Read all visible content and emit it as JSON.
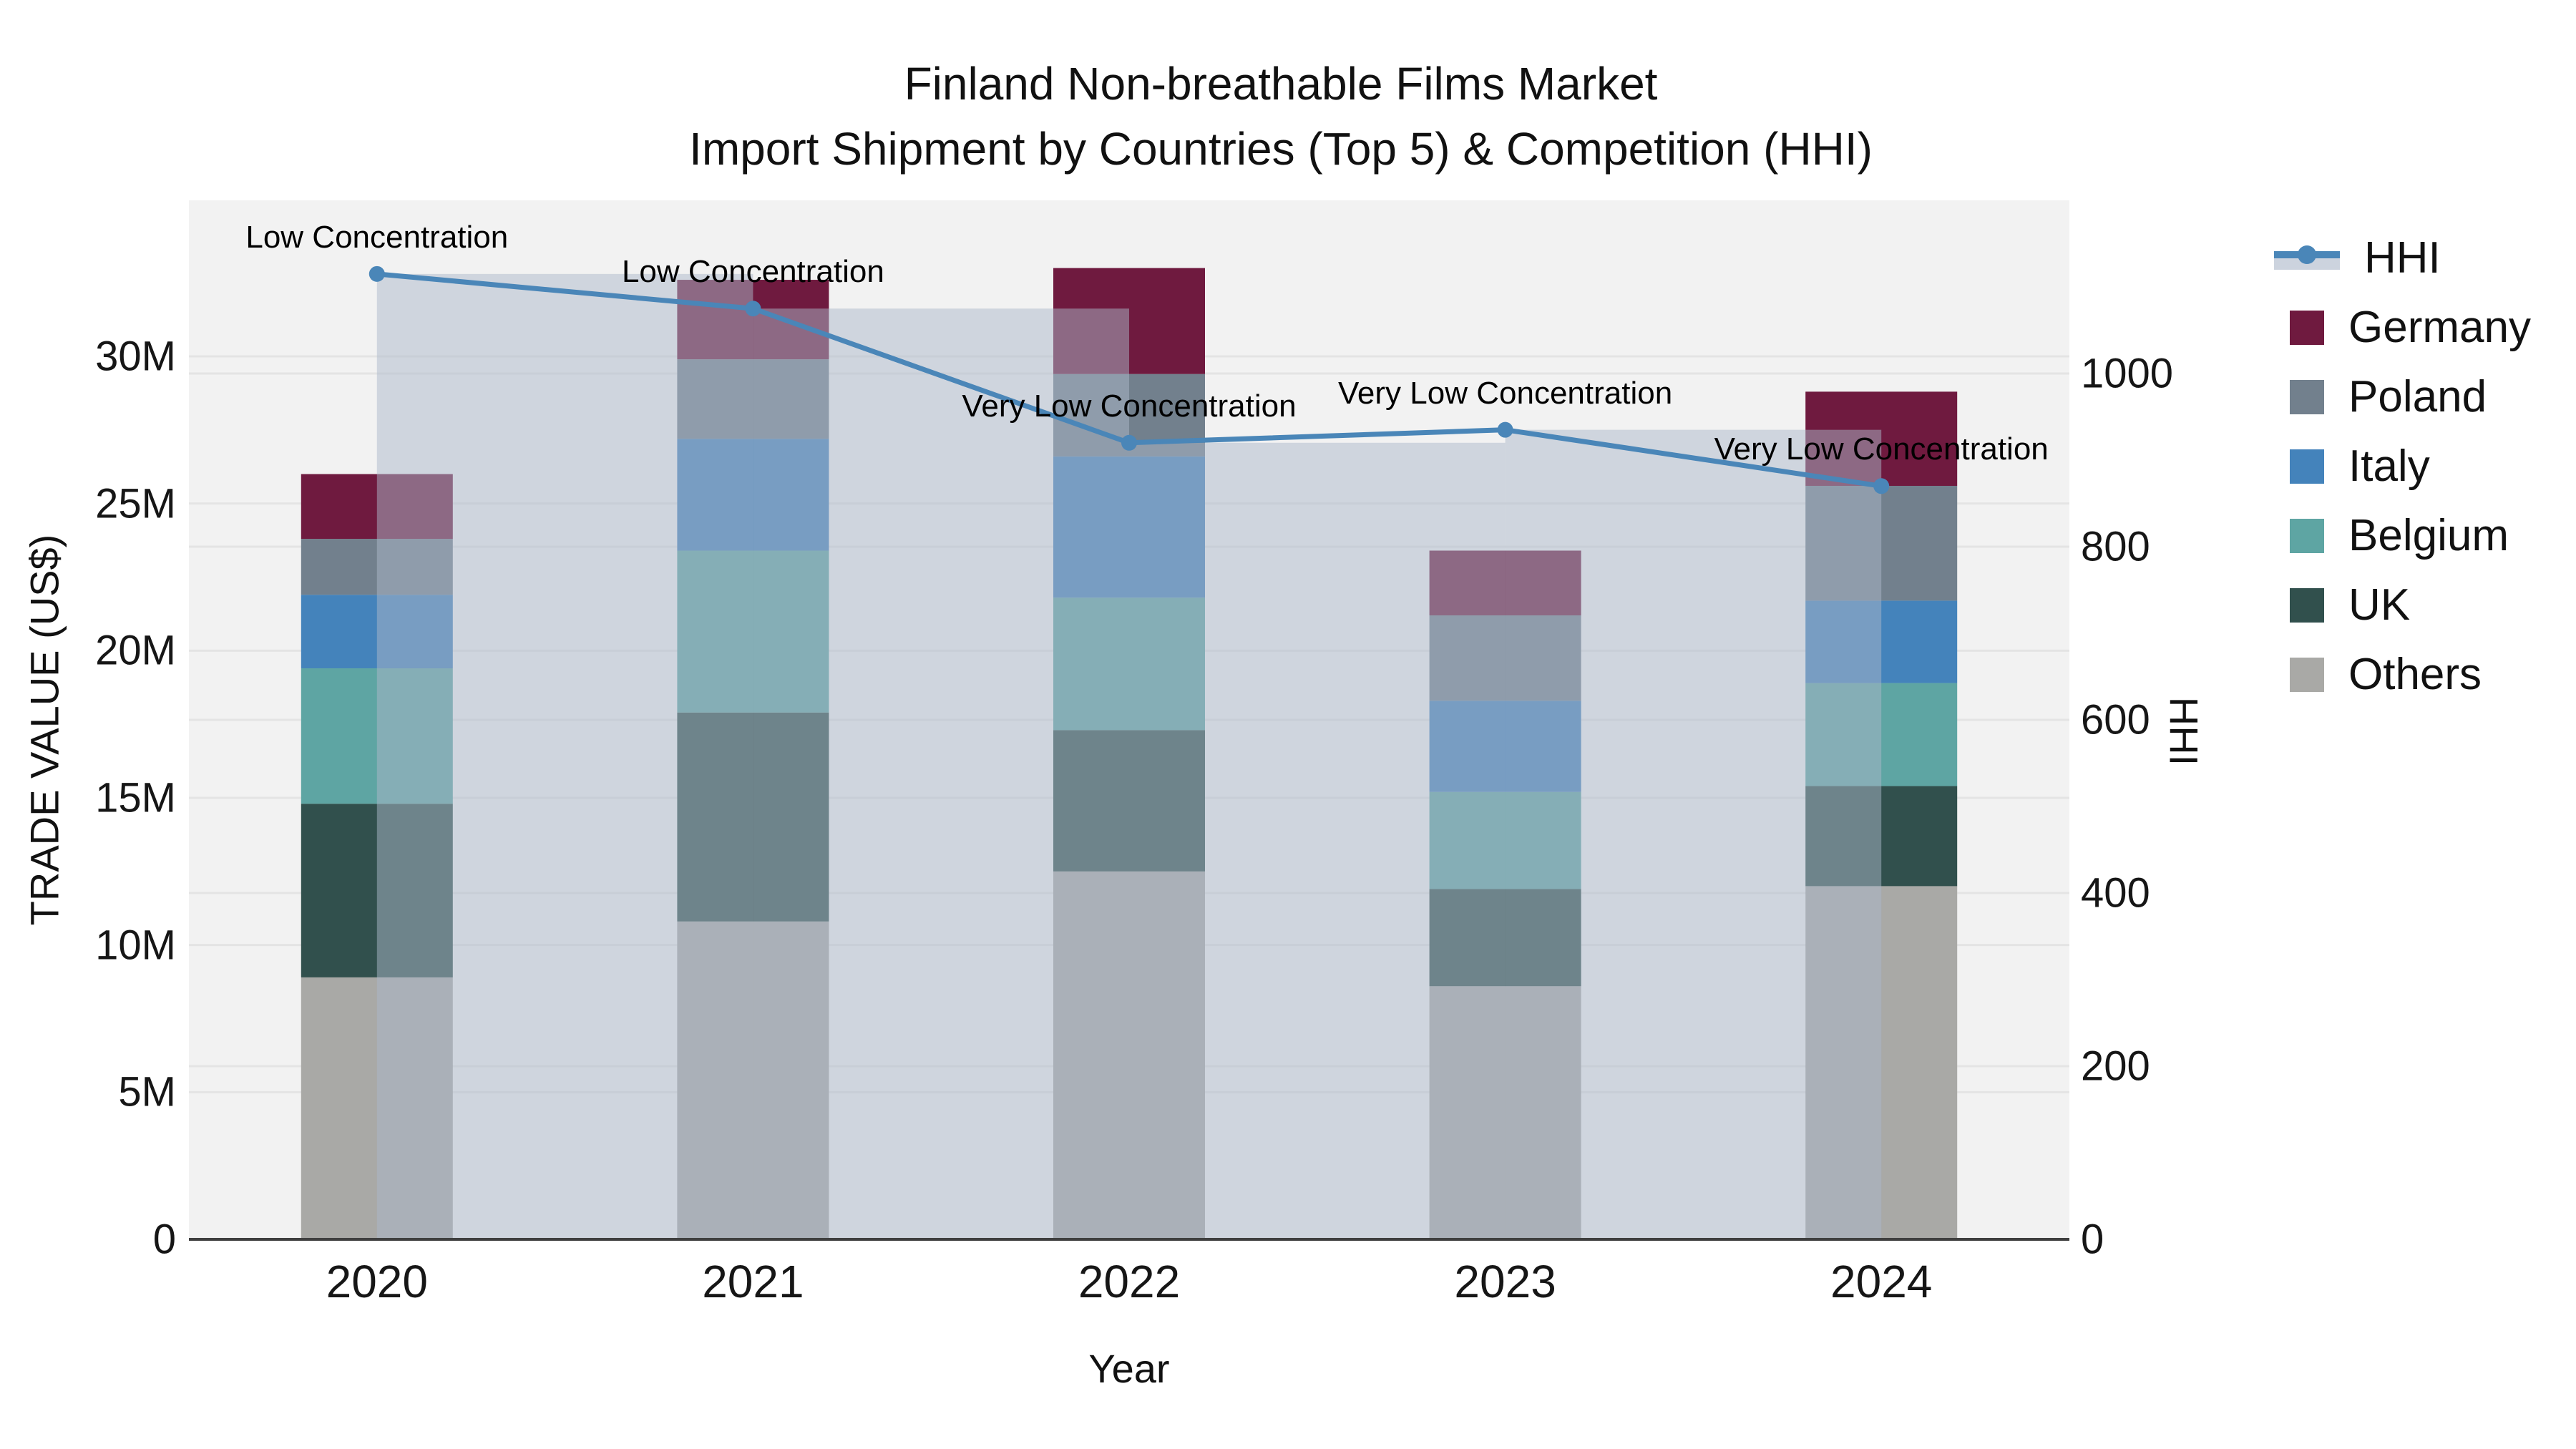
{
  "title": {
    "line1": "Finland Non-breathable Films Market",
    "line2": "Import Shipment by Countries (Top 5) & Competition (HHI)"
  },
  "axes": {
    "x": {
      "title": "Year",
      "labels": [
        "2020",
        "2021",
        "2022",
        "2023",
        "2024"
      ]
    },
    "y_left": {
      "title": "TRADE VALUE (US$)",
      "ticks": [
        {
          "label": "0",
          "value": 0
        },
        {
          "label": "5M",
          "value": 5
        },
        {
          "label": "10M",
          "value": 10
        },
        {
          "label": "15M",
          "value": 15
        },
        {
          "label": "20M",
          "value": 20
        },
        {
          "label": "25M",
          "value": 25
        },
        {
          "label": "30M",
          "value": 30
        }
      ],
      "max": 35.3
    },
    "y_right": {
      "title": "HHI",
      "ticks": [
        {
          "label": "0",
          "value": 0
        },
        {
          "label": "200",
          "value": 200
        },
        {
          "label": "400",
          "value": 400
        },
        {
          "label": "600",
          "value": 600
        },
        {
          "label": "800",
          "value": 800
        },
        {
          "label": "1000",
          "value": 1000
        }
      ],
      "max": 1200
    }
  },
  "legend": {
    "items": [
      {
        "label": "HHI",
        "type": "line",
        "color": "#4a86b8",
        "band": "#ccd3de"
      },
      {
        "label": "Germany",
        "type": "square",
        "color": "#6f1a3f"
      },
      {
        "label": "Poland",
        "type": "square",
        "color": "#72808d"
      },
      {
        "label": "Italy",
        "type": "square",
        "color": "#4483bb"
      },
      {
        "label": "Belgium",
        "type": "square",
        "color": "#5ea5a3"
      },
      {
        "label": "UK",
        "type": "square",
        "color": "#31504d"
      },
      {
        "label": "Others",
        "type": "square",
        "color": "#a9a9a6"
      }
    ]
  },
  "chart_data": {
    "type": "bar",
    "subtype": "stacked-bars-with-hhi-line-and-bands",
    "title": "Finland Non-breathable Films Market — Import Shipment by Countries (Top 5) & Competition (HHI)",
    "xlabel": "Year",
    "ylabel": "TRADE VALUE (US$)",
    "y2label": "HHI",
    "categories": [
      "2020",
      "2021",
      "2022",
      "2023",
      "2024"
    ],
    "unit": "US$ millions",
    "stack_order_bottom_to_top": [
      "Others",
      "UK",
      "Belgium",
      "Italy",
      "Poland",
      "Germany"
    ],
    "series": [
      {
        "name": "Others",
        "color": "#a9a9a6",
        "values": [
          8.9,
          10.8,
          12.5,
          8.6,
          12.0
        ]
      },
      {
        "name": "UK",
        "color": "#31504d",
        "values": [
          5.9,
          7.1,
          4.8,
          3.3,
          3.4
        ]
      },
      {
        "name": "Belgium",
        "color": "#5ea5a3",
        "values": [
          4.6,
          5.5,
          4.5,
          3.3,
          3.5
        ]
      },
      {
        "name": "Italy",
        "color": "#4483bb",
        "values": [
          2.5,
          3.8,
          4.8,
          3.1,
          2.8
        ]
      },
      {
        "name": "Poland",
        "color": "#72808d",
        "values": [
          1.9,
          2.7,
          2.8,
          2.9,
          3.9
        ]
      },
      {
        "name": "Germany",
        "color": "#6f1a3f",
        "values": [
          2.2,
          2.7,
          3.6,
          2.2,
          3.2
        ]
      }
    ],
    "line_series": {
      "name": "HHI",
      "axis": "right",
      "color": "#4a86b8",
      "values": [
        1115,
        1075,
        920,
        935,
        870
      ]
    },
    "hhi_band": {
      "fill": "rgba(171,183,202,0.5)",
      "note": "translucent band from each year tick to the next, height = that year's HHI"
    },
    "annotations": [
      {
        "category": "2020",
        "text": "Low Concentration"
      },
      {
        "category": "2021",
        "text": "Low Concentration"
      },
      {
        "category": "2022",
        "text": "Very Low Concentration"
      },
      {
        "category": "2023",
        "text": "Very Low Concentration"
      },
      {
        "category": "2024",
        "text": "Very Low Concentration"
      }
    ],
    "ylim": [
      0,
      35.3
    ],
    "y2lim": [
      0,
      1200
    ],
    "grid": true,
    "legend_position": "right"
  },
  "colors": {
    "plot_bg": "#f2f2f2",
    "grid": "#e4e4e4",
    "axis_line": "#3f3f3f",
    "text": "#111111"
  }
}
